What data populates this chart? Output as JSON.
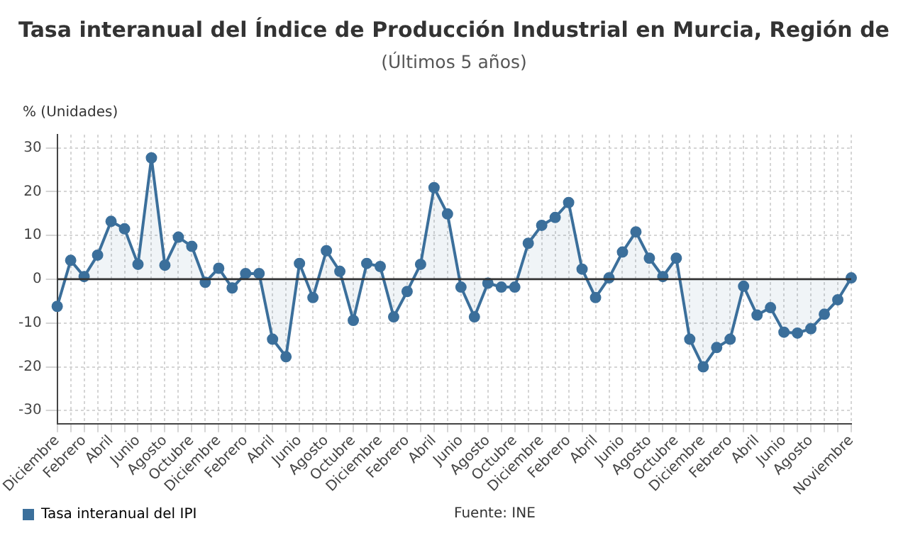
{
  "chart_data": {
    "type": "area",
    "title": "Tasa interanual del Índice de Producción Industrial en Murcia, Región de",
    "subtitle": "(Últimos 5 años)",
    "ylabel": "% (Unidades)",
    "categories": [
      "Diciembre",
      null,
      "Febrero",
      null,
      "Abril",
      null,
      "Junio",
      null,
      "Agosto",
      null,
      "Octubre",
      null,
      "Diciembre",
      null,
      "Febrero",
      null,
      "Abril",
      null,
      "Junio",
      null,
      "Agosto",
      null,
      "Octubre",
      null,
      "Diciembre",
      null,
      "Febrero",
      null,
      "Abril",
      null,
      "Junio",
      null,
      "Agosto",
      null,
      "Octubre",
      null,
      "Diciembre",
      null,
      "Febrero",
      null,
      "Abril",
      null,
      "Junio",
      null,
      "Agosto",
      null,
      "Octubre",
      null,
      "Diciembre",
      null,
      "Febrero",
      null,
      "Abril",
      null,
      "Junio",
      null,
      "Agosto",
      null,
      null,
      "Noviembre"
    ],
    "series": [
      {
        "name": "Tasa interanual del IPI",
        "color": "#3b6f9b",
        "values": [
          -6.2,
          4.3,
          0.6,
          5.5,
          13.2,
          11.5,
          3.4,
          27.7,
          3.2,
          9.6,
          7.5,
          -0.7,
          2.5,
          -2,
          1.3,
          1.3,
          -13.7,
          -17.7,
          3.6,
          -4.2,
          6.5,
          1.8,
          -9.4,
          3.6,
          2.9,
          -8.6,
          -2.8,
          3.4,
          20.9,
          14.9,
          -1.8,
          -8.6,
          -0.9,
          -1.8,
          -1.8,
          8.2,
          12.3,
          14.1,
          17.5,
          2.3,
          -4.2,
          0.3,
          6.2,
          10.8,
          4.8,
          0.6,
          4.8,
          -13.7,
          -20,
          -15.6,
          -13.7,
          -1.6,
          -8.2,
          -6.5,
          -12.1,
          -12.3,
          -11.3,
          -8,
          -4.7,
          0.3
        ]
      }
    ],
    "ylim": [
      -33,
      33
    ],
    "yticks": [
      -30,
      -20,
      -10,
      0,
      10,
      20,
      30
    ],
    "grid": true,
    "legend": "bottom",
    "marker": "circle",
    "ref_lines": [
      {
        "axis": "y",
        "value": 0,
        "color": "#333333"
      }
    ],
    "annotations": [
      "Fuente: INE"
    ]
  }
}
